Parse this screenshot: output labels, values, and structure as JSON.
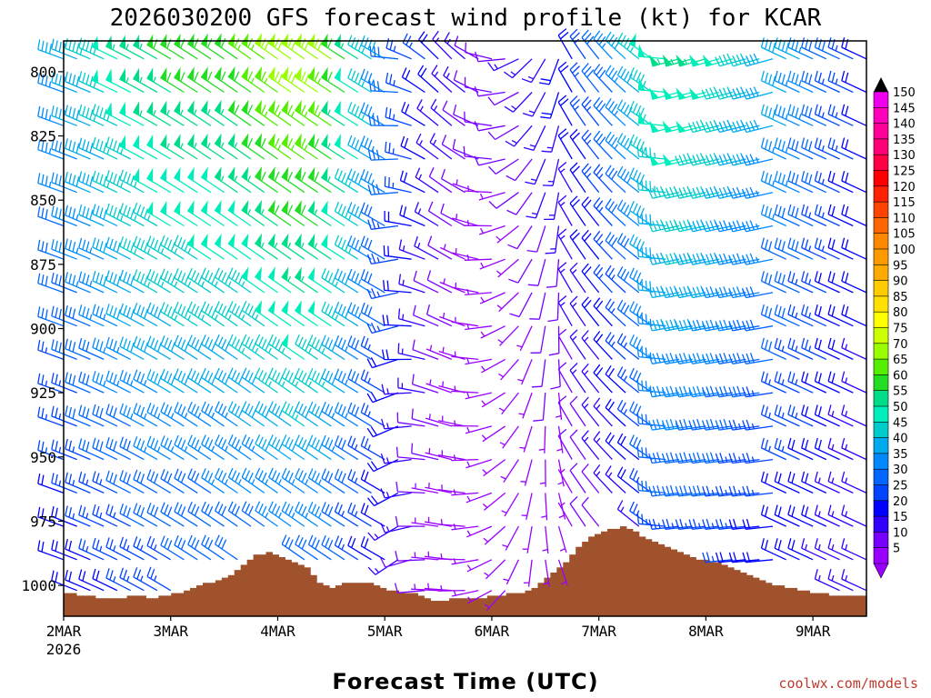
{
  "chart_data": {
    "type": "wind-barb-time-height",
    "title": "2026030200 GFS forecast wind profile (kt) for KCAR",
    "xlabel": "Forecast Time (UTC)",
    "x_ticks": [
      "2MAR",
      "3MAR",
      "4MAR",
      "5MAR",
      "6MAR",
      "7MAR",
      "8MAR",
      "9MAR"
    ],
    "x_year": "2026",
    "y_ticks": [
      "800",
      "825",
      "850",
      "875",
      "900",
      "925",
      "950",
      "975",
      "1000"
    ],
    "y_tick_values": [
      800,
      825,
      850,
      875,
      900,
      925,
      950,
      975,
      1000
    ],
    "ylim": [
      1012,
      788
    ],
    "levels_hpa": [
      795,
      808,
      821,
      834,
      847,
      860,
      873,
      886,
      899,
      912,
      925,
      938,
      951,
      964,
      977,
      990,
      1002
    ],
    "time_range_hours": [
      0,
      180
    ],
    "time_step_hours": 3,
    "colorbar": {
      "labels": [
        "150",
        "145",
        "140",
        "135",
        "130",
        "125",
        "120",
        "115",
        "110",
        "105",
        "100",
        "95",
        "90",
        "85",
        "80",
        "75",
        "70",
        "65",
        "60",
        "55",
        "50",
        "45",
        "40",
        "35",
        "30",
        "25",
        "20",
        "15",
        "10",
        "5"
      ],
      "colors": [
        "#ee00ee",
        "#ff00bb",
        "#ff0099",
        "#ff0077",
        "#ff0044",
        "#ff0000",
        "#ff2200",
        "#ff4400",
        "#ff6600",
        "#ff8800",
        "#ff9900",
        "#ffaa00",
        "#ffcc00",
        "#ffe000",
        "#ffff00",
        "#ccff00",
        "#99ff00",
        "#55ee00",
        "#22dd22",
        "#00dd88",
        "#00eebb",
        "#00cccc",
        "#00aaee",
        "#0088ff",
        "#0066ff",
        "#0044ff",
        "#0000ff",
        "#3300ff",
        "#7700ff",
        "#9900ff"
      ]
    },
    "terrain": {
      "color": "#a0522d",
      "surface_pressure_hpa": [
        1003,
        1003,
        1004,
        1004,
        1004,
        1005,
        1005,
        1005,
        1005,
        1005,
        1004,
        1004,
        1004,
        1005,
        1005,
        1004,
        1004,
        1003,
        1003,
        1002,
        1001,
        1000,
        999,
        999,
        998,
        997,
        996,
        994,
        992,
        990,
        988,
        988,
        987,
        988,
        989,
        990,
        991,
        992,
        993,
        996,
        999,
        1000,
        1001,
        1000,
        999,
        999,
        999,
        999,
        999,
        1000,
        1001,
        1002,
        1002,
        1003,
        1003,
        1003,
        1004,
        1005,
        1006,
        1006,
        1006,
        1005,
        1005,
        1005,
        1005,
        1005,
        1005,
        1004,
        1004,
        1004,
        1003,
        1003,
        1003,
        1002,
        1001,
        999,
        997,
        995,
        993,
        991,
        988,
        985,
        983,
        981,
        980,
        979,
        978,
        978,
        977,
        978,
        979,
        981,
        982,
        983,
        984,
        985,
        986,
        987,
        988,
        989,
        990,
        990,
        991,
        991,
        992,
        993,
        994,
        995,
        996,
        997,
        998,
        999,
        1000,
        1000,
        1001,
        1001,
        1002,
        1002,
        1003,
        1003,
        1003,
        1004,
        1004,
        1004,
        1004,
        1004,
        1004
      ]
    }
  },
  "credit": "coolwx.com/models"
}
